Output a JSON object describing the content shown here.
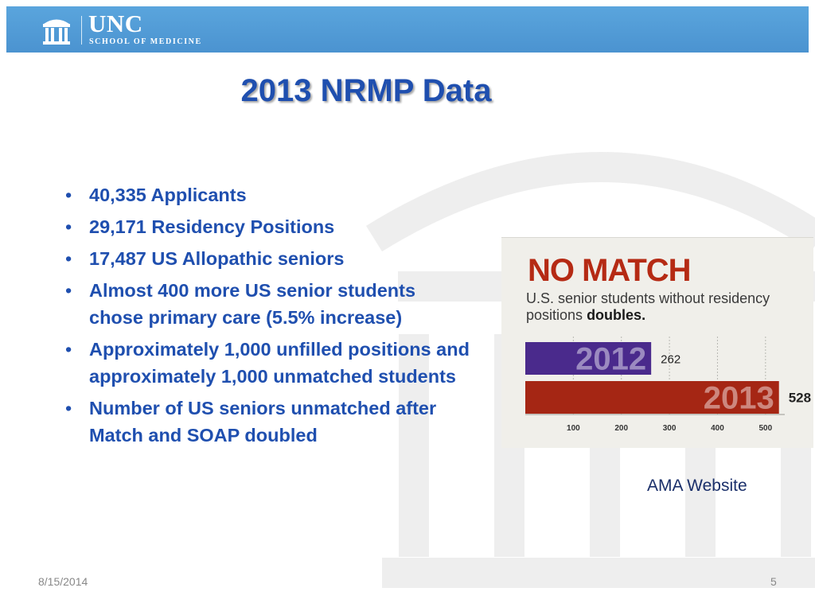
{
  "header": {
    "logo_name": "UNC",
    "logo_subtitle": "SCHOOL OF MEDICINE",
    "logo_icon": "old-well-icon",
    "background_color": "#4e97d3"
  },
  "slide": {
    "title": "2013 NRMP Data",
    "bullets": [
      "40,335 Applicants",
      "29,171 Residency Positions",
      "17,487 US Allopathic seniors",
      "Almost 400 more US senior students chose primary care (5.5% increase)",
      "Approximately 1,000 unfilled positions and approximately 1,000 unmatched students",
      "Number of US seniors unmatched after Match and SOAP doubled"
    ],
    "bullet_symbol": "•",
    "text_color": "#1f4faf"
  },
  "chart_data": {
    "type": "bar",
    "orientation": "horizontal",
    "title": "NO MATCH",
    "subtitle": "U.S. senior students without residency positions",
    "subtitle_bold": "doubles.",
    "categories": [
      "2012",
      "2013"
    ],
    "values": [
      262,
      528
    ],
    "colors": [
      "#4a2a8c",
      "#a52614"
    ],
    "xlim": [
      0,
      550
    ],
    "xticks": [
      100,
      200,
      300,
      400,
      500
    ],
    "grid": true
  },
  "caption": "AMA Website",
  "footer": {
    "date": "8/15/2014",
    "page_number": "5"
  }
}
